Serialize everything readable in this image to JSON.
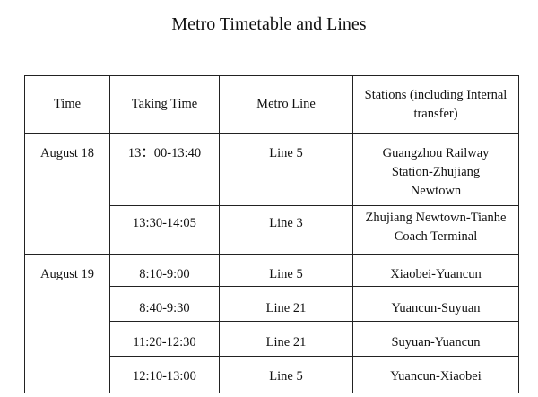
{
  "title": "Metro Timetable and Lines",
  "table": {
    "headers": [
      "Time",
      "Taking Time",
      "Metro Line",
      "Stations (including Internal transfer)"
    ],
    "groups": [
      {
        "date": "August 18",
        "rows": [
          {
            "taking_time": "13：00-13:40",
            "line": "Line 5",
            "stations": "Guangzhou Railway Station-Zhujiang Newtown"
          },
          {
            "taking_time": "13:30-14:05",
            "line": "Line 3",
            "stations": "Zhujiang Newtown-Tianhe Coach Terminal"
          }
        ]
      },
      {
        "date": "August 19",
        "rows": [
          {
            "taking_time": "8:10-9:00",
            "line": "Line 5",
            "stations": "Xiaobei-Yuancun"
          },
          {
            "taking_time": "8:40-9:30",
            "line": "Line 21",
            "stations": "Yuancun-Suyuan"
          },
          {
            "taking_time": "11:20-12:30",
            "line": "Line 21",
            "stations": "Suyuan-Yuancun"
          },
          {
            "taking_time": "12:10-13:00",
            "line": "Line 5",
            "stations": "Yuancun-Xiaobei"
          }
        ]
      }
    ]
  }
}
